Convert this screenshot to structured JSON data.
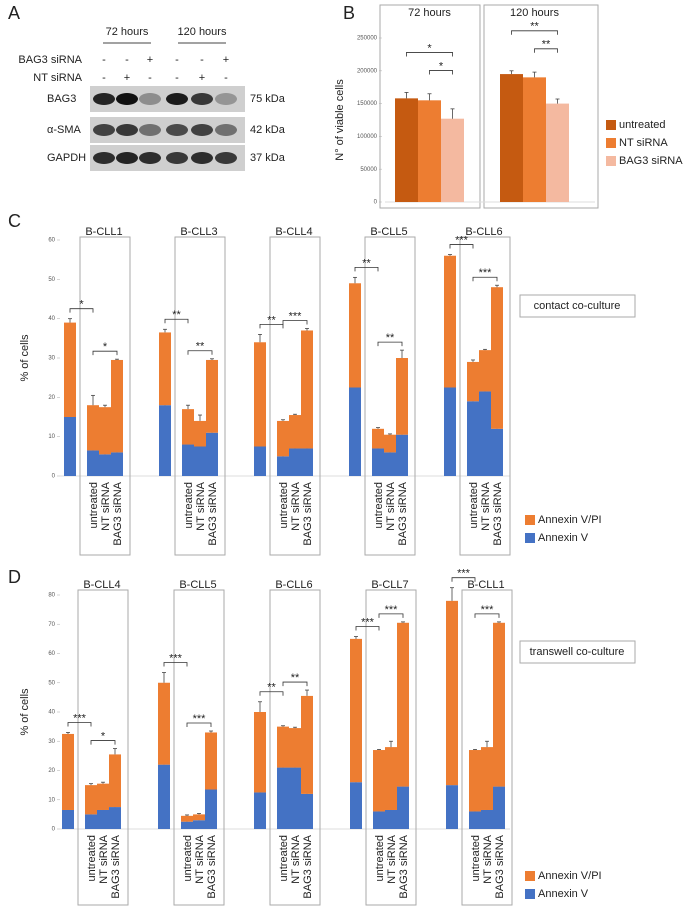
{
  "panel_labels": [
    "A",
    "B",
    "C",
    "D"
  ],
  "blot": {
    "time_labels": [
      "72 hours",
      "120 hours"
    ],
    "conditions": [
      {
        "name": "BAG3 siRNA",
        "signs": [
          "-",
          "-",
          "+",
          "-",
          "-",
          "+"
        ]
      },
      {
        "name": "NT siRNA",
        "signs": [
          "-",
          "+",
          "-",
          "-",
          "+",
          "-"
        ]
      }
    ],
    "bands": [
      {
        "name": "BAG3",
        "size": "75 kDa"
      },
      {
        "name": "α-SMA",
        "size": "42 kDa"
      },
      {
        "name": "GAPDH",
        "size": "37 kDa"
      }
    ]
  },
  "chart_data": [
    {
      "type": "bar",
      "ylabel": "N° of viable cells",
      "categories": [
        "72 hours",
        "120 hours"
      ],
      "series": [
        {
          "name": "untreated",
          "color": "#c55a11",
          "values": [
            158000,
            195000
          ],
          "errors": [
            9000,
            5000
          ]
        },
        {
          "name": "NT siRNA",
          "color": "#ed7d31",
          "values": [
            155000,
            190000
          ],
          "errors": [
            10000,
            8000
          ]
        },
        {
          "name": "BAG3 siRNA",
          "color": "#f4b9a0",
          "values": [
            127000,
            150000
          ],
          "errors": [
            15000,
            7000
          ]
        }
      ],
      "significance": [
        [
          "*",
          "*"
        ],
        [
          "**",
          "**"
        ]
      ],
      "ylim": [
        0,
        250000
      ],
      "yticks": [
        0,
        50000,
        100000,
        150000,
        200000,
        250000
      ],
      "legend": "right"
    },
    {
      "type": "stacked_bar",
      "ylabel": "% of cells",
      "box_label": "contact co-culture",
      "groups": [
        "B-CLL1",
        "B-CLL3",
        "B-CLL4",
        "B-CLL5",
        "B-CLL6"
      ],
      "categories": [
        null,
        "untreated",
        "NT siRNA",
        "BAG3 siRNA"
      ],
      "series": [
        {
          "name": "Annexin V/PI",
          "color": "#ed7d31",
          "values": [
            [
              24,
              11.5,
              12,
              23.5
            ],
            [
              18.5,
              9,
              6.5,
              18.5
            ],
            [
              26.5,
              9,
              8.5,
              30
            ],
            [
              26.5,
              5,
              4.5,
              19.5
            ],
            [
              33.5,
              10,
              10.5,
              36
            ]
          ],
          "errors": [
            [
              1,
              2.5,
              0.5,
              0.2
            ],
            [
              0.8,
              1,
              1.5,
              0.3
            ],
            [
              2,
              0.3,
              0.2,
              0.5
            ],
            [
              1.5,
              0.3,
              0.2,
              2
            ],
            [
              0.3,
              0.5,
              0.2,
              0.5
            ]
          ]
        },
        {
          "name": "Annexin V",
          "color": "#4472c4",
          "values": [
            [
              15,
              6.5,
              5.5,
              6
            ],
            [
              18,
              8,
              7.5,
              11
            ],
            [
              7.5,
              5,
              7,
              7
            ],
            [
              22.5,
              7,
              6,
              10.5
            ],
            [
              22.5,
              19,
              21.5,
              12
            ]
          ],
          "errors": [
            [
              0.5,
              0.8,
              0.3,
              1.2
            ],
            [
              1.5,
              1.2,
              1.5,
              0.3
            ],
            [
              0.5,
              2,
              0.3,
              0.3
            ],
            [
              0.3,
              1,
              0.5,
              4
            ],
            [
              0.3,
              0.8,
              2.5,
              1.5
            ]
          ]
        }
      ],
      "significance": [
        [
          "*",
          "*"
        ],
        [
          "**",
          "**"
        ],
        [
          "**",
          "***"
        ],
        [
          "**",
          "**"
        ],
        [
          "***",
          "***"
        ]
      ],
      "ylim": [
        0,
        60
      ],
      "yticks": [
        0,
        10,
        20,
        30,
        40,
        50,
        60
      ],
      "legend": "right"
    },
    {
      "type": "stacked_bar",
      "ylabel": "% of cells",
      "box_label": "transwell co-culture",
      "groups": [
        "B-CLL4",
        "B-CLL5",
        "B-CLL6",
        "B-CLL7",
        "B-CLL1"
      ],
      "categories": [
        null,
        "untreated",
        "NT siRNA",
        "BAG3 siRNA"
      ],
      "series": [
        {
          "name": "Annexin V/PI",
          "color": "#ed7d31",
          "values": [
            [
              26,
              10,
              9,
              18
            ],
            [
              28,
              2,
              2,
              19.5
            ],
            [
              27.5,
              14,
              13.5,
              33.5
            ],
            [
              49,
              21,
              21.5,
              56
            ],
            [
              63,
              21,
              21.5,
              56
            ]
          ],
          "errors": [
            [
              0.5,
              0.5,
              0.5,
              2
            ],
            [
              3.5,
              0.3,
              0.3,
              0.5
            ],
            [
              3.5,
              0.3,
              0.3,
              2
            ],
            [
              0.8,
              0.2,
              2,
              0.3
            ],
            [
              4.5,
              0.2,
              2,
              0.3
            ]
          ]
        },
        {
          "name": "Annexin V",
          "color": "#4472c4",
          "values": [
            [
              6.5,
              5,
              6.5,
              7.5
            ],
            [
              22,
              2.5,
              3,
              13.5
            ],
            [
              12.5,
              21,
              21,
              12
            ],
            [
              16,
              6,
              6.5,
              14.5
            ],
            [
              15,
              6,
              6.5,
              14.5
            ]
          ],
          "errors": [
            [
              0.3,
              0.5,
              1,
              1.5
            ],
            [
              3,
              0.5,
              0.5,
              0.5
            ],
            [
              1.5,
              1.5,
              1.5,
              2
            ],
            [
              0.8,
              1.5,
              1.5,
              0.5
            ],
            [
              0.5,
              1,
              1.5,
              0.5
            ]
          ]
        }
      ],
      "significance": [
        [
          "***",
          "*"
        ],
        [
          "***",
          "***"
        ],
        [
          "**",
          "**"
        ],
        [
          "***",
          "***"
        ],
        [
          "***",
          "***"
        ]
      ],
      "ylim": [
        0,
        80
      ],
      "yticks": [
        0,
        10,
        20,
        30,
        40,
        50,
        60,
        70,
        80
      ],
      "legend": "right"
    }
  ]
}
